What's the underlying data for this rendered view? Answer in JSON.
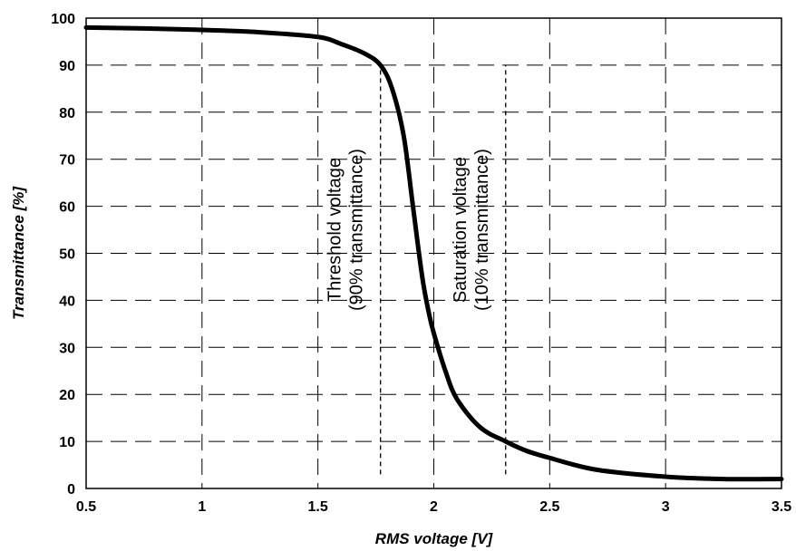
{
  "chart_data": {
    "type": "line",
    "xlabel": "RMS voltage [V]",
    "ylabel": "Transmittance [%]",
    "xlim": [
      0.5,
      3.5
    ],
    "ylim": [
      0,
      100
    ],
    "x_ticks": [
      "0.5",
      "1",
      "1.5",
      "2",
      "2.5",
      "3",
      "3.5"
    ],
    "y_ticks": [
      "0",
      "10",
      "20",
      "30",
      "40",
      "50",
      "60",
      "70",
      "80",
      "90",
      "100"
    ],
    "grid": "dashed",
    "legend": "none",
    "series": [
      {
        "color": "#000000",
        "x": [
          0.5,
          0.75,
          1.0,
          1.25,
          1.5,
          1.6,
          1.7,
          1.77,
          1.82,
          1.87,
          1.91,
          1.95,
          1.98,
          2.0,
          2.05,
          2.1,
          2.2,
          2.31,
          2.4,
          2.5,
          2.7,
          3.0,
          3.25,
          3.5
        ],
        "y": [
          98,
          97.8,
          97.5,
          97,
          96,
          94.5,
          92.5,
          90,
          85,
          75,
          60,
          45,
          37,
          33,
          25,
          19,
          13,
          10,
          8,
          6.5,
          4,
          2.5,
          2,
          2
        ]
      }
    ],
    "markers": [
      {
        "x": 1.77,
        "y_range": [
          3,
          90
        ],
        "label_line1": "Threshold voltage",
        "label_line2": "(90% transmittance)"
      },
      {
        "x": 2.31,
        "y_range": [
          3,
          90
        ],
        "label_line1": "Saturation voltage",
        "label_line2": "(10% transmittance)"
      }
    ]
  }
}
